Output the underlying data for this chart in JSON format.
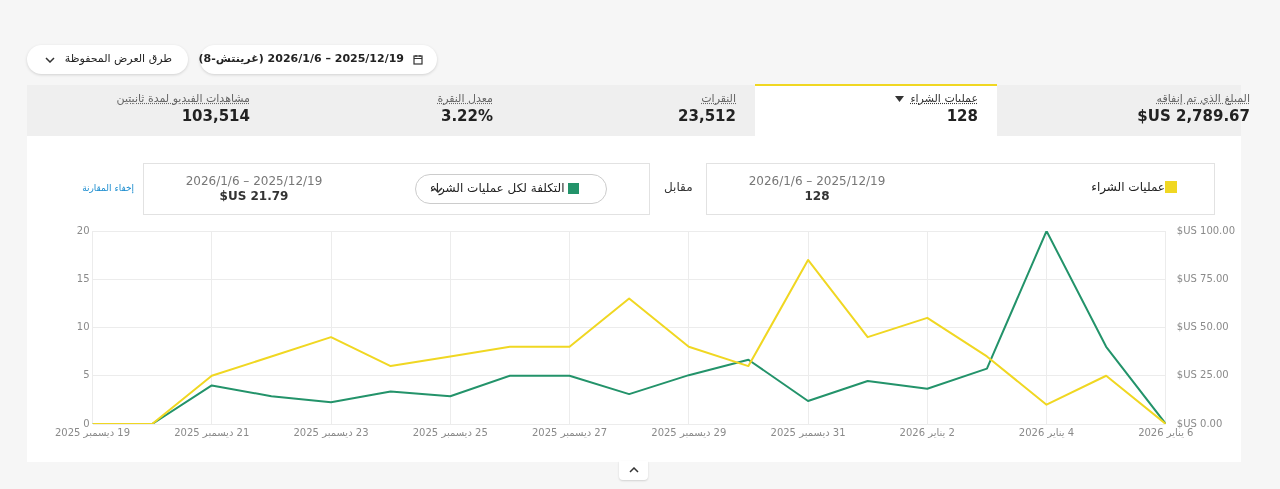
{
  "chart_data": {
    "type": "line",
    "x": [
      "2025-12-19",
      "2025-12-20",
      "2025-12-21",
      "2025-12-22",
      "2025-12-23",
      "2025-12-24",
      "2025-12-25",
      "2025-12-26",
      "2025-12-27",
      "2025-12-28",
      "2025-12-29",
      "2025-12-30",
      "2025-12-31",
      "2026-01-01",
      "2026-01-02",
      "2026-01-03",
      "2026-01-04",
      "2026-01-05",
      "2026-01-06"
    ],
    "series": [
      {
        "name": "عمليات الشراء",
        "color": "#f0d722",
        "values": [
          0,
          0,
          5,
          7,
          9,
          6,
          7,
          8,
          8,
          13,
          8,
          6,
          17,
          9,
          11,
          7,
          2,
          5,
          0
        ]
      },
      {
        "name": "التكلفة لكل عمليات الشراء",
        "color": "#23936a",
        "axis": "y2",
        "values": [
          0,
          0,
          20,
          14.4,
          11.3,
          16.8,
          14.4,
          25,
          25,
          15.5,
          25.3,
          33.3,
          11.9,
          22.3,
          18.3,
          28.7,
          100,
          40,
          0
        ]
      }
    ],
    "xlim": [
      "2025-12-19",
      "2026-01-06"
    ],
    "xticks": [
      {
        "value": "2025-12-19",
        "label": "19 ديسمبر 2025"
      },
      {
        "value": "2025-12-21",
        "label": "21 ديسمبر 2025"
      },
      {
        "value": "2025-12-23",
        "label": "23 ديسمبر 2025"
      },
      {
        "value": "2025-12-25",
        "label": "25 ديسمبر 2025"
      },
      {
        "value": "2025-12-27",
        "label": "27 ديسمبر 2025"
      },
      {
        "value": "2025-12-29",
        "label": "29 ديسمبر 2025"
      },
      {
        "value": "2025-12-31",
        "label": "31 ديسمبر 2025"
      },
      {
        "value": "2026-01-02",
        "label": "2 يناير 2026"
      },
      {
        "value": "2026-01-04",
        "label": "4 يناير 2026"
      },
      {
        "value": "2026-01-06",
        "label": "6 يناير 2026"
      }
    ],
    "ylim": [
      0,
      20
    ],
    "yticks": [
      0,
      5,
      10,
      15,
      20
    ],
    "y2lim": [
      0,
      100
    ],
    "y2ticks": [
      {
        "value": 0,
        "label": "0.00 US$"
      },
      {
        "value": 25,
        "label": "25.00 US$"
      },
      {
        "value": 50,
        "label": "50.00 US$"
      },
      {
        "value": 75,
        "label": "75.00 US$"
      },
      {
        "value": 100,
        "label": "100.00 US$"
      }
    ],
    "grid": true,
    "legend": "top",
    "marker": "none",
    "line_style": "solid",
    "annotations": [
      "طرق العرض المحفوظة",
      "2025/12/19 – 2026/1/6 (غرينتش-8)",
      "المبلغ الذي تم إنفاقه",
      "$US 2,789.67",
      "عمليات الشراء",
      "128",
      "النقرات",
      "23,512",
      "معدل النقرة",
      "3.22%",
      "مشاهدات الفيديو لمدة ثانيتين",
      "103,514",
      "مقابل",
      "2025/12/19 – 2026/1/6",
      "128",
      "2025/12/19 – 2026/1/6",
      "$US 21.79",
      "إخفاء المقارنة"
    ]
  }
}
